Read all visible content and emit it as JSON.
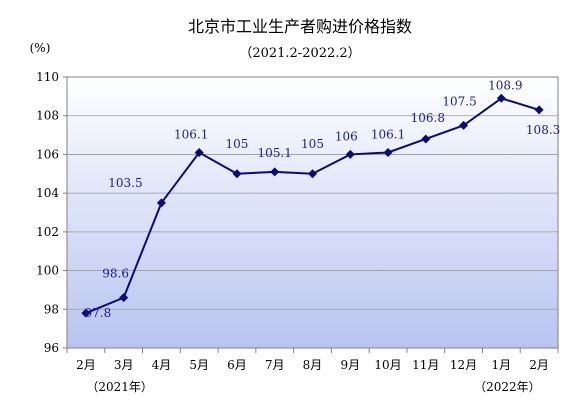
{
  "chart_data": {
    "type": "line",
    "title": "北京市工业生产者购进价格指数",
    "subtitle": "（2021.2-2022.2）",
    "ylabel": "(%)",
    "ylim": [
      96,
      110
    ],
    "yticks": [
      96,
      98,
      100,
      102,
      104,
      106,
      108,
      110
    ],
    "grid": true,
    "categories": [
      "2月",
      "3月",
      "4月",
      "5月",
      "6月",
      "7月",
      "8月",
      "9月",
      "10月",
      "11月",
      "12月",
      "1月",
      "2月"
    ],
    "series": [
      {
        "values": [
          97.8,
          98.6,
          103.5,
          106.1,
          105.0,
          105.1,
          105.0,
          106.0,
          106.1,
          106.8,
          107.5,
          108.9,
          108.3
        ],
        "labels": [
          "97.8",
          "98.6",
          "103.5",
          "106.1",
          "105",
          "105.1",
          "105",
          "106",
          "106.1",
          "106.8",
          "107.5",
          "108.9",
          "108.3"
        ]
      }
    ],
    "year_notes": [
      "（2021年）",
      "（2022年）"
    ],
    "colors": {
      "line": "#0a0a78",
      "marker": "#0a0a78",
      "data_label": "#1a1a9a",
      "plot_bg_top": "#ffffff",
      "plot_bg_bottom": "#b8c4f0",
      "grid": "#9a9a9a"
    }
  }
}
